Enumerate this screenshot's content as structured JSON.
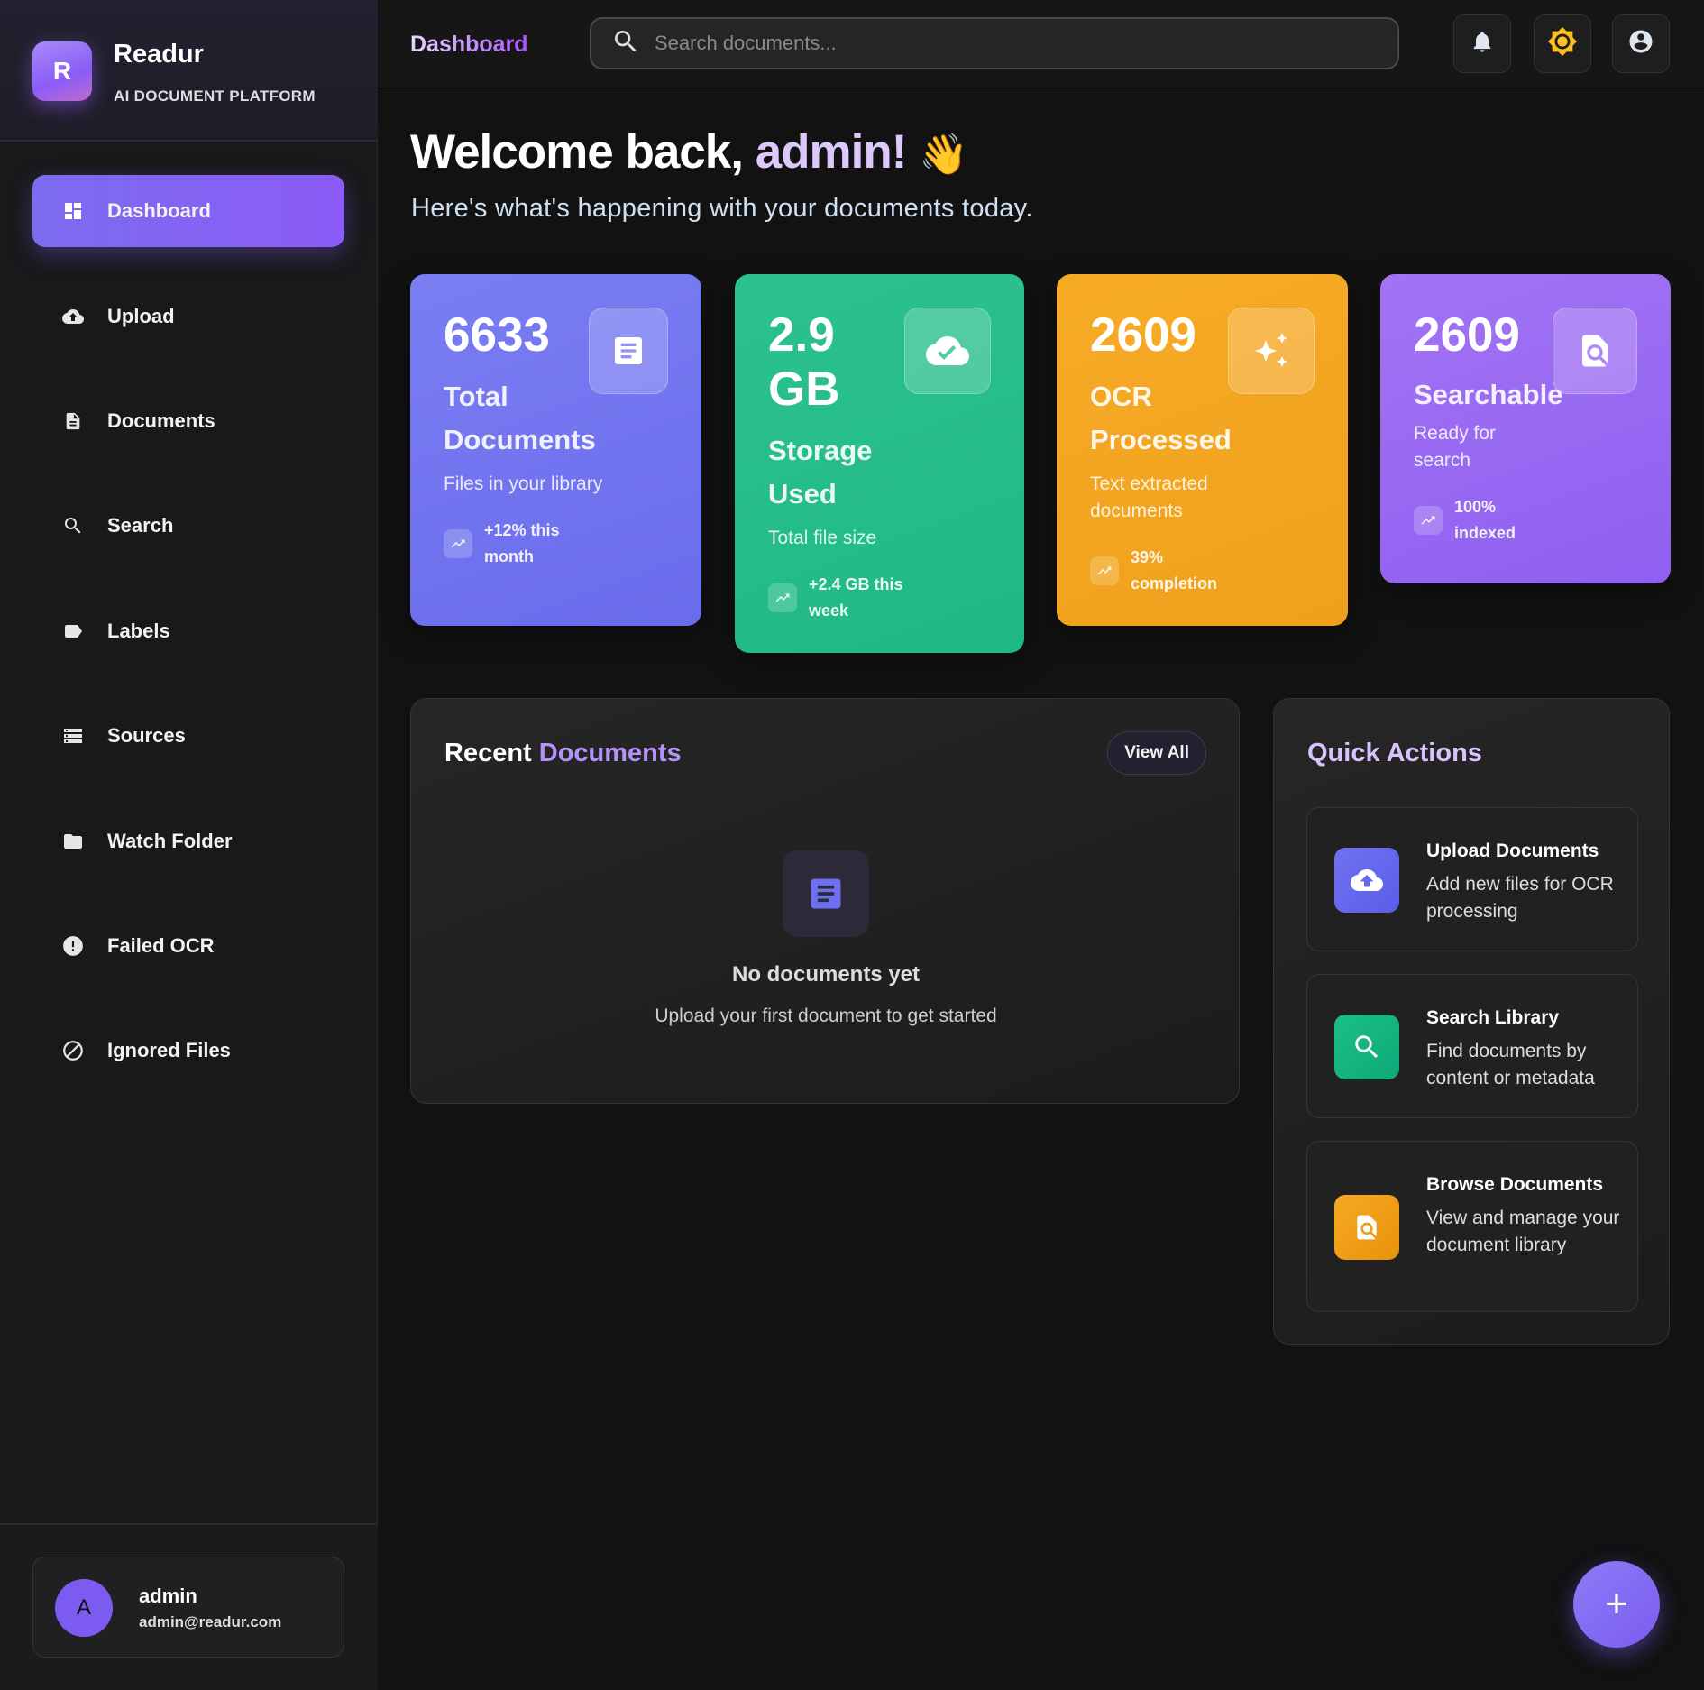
{
  "brand": {
    "logo_letter": "R",
    "name": "Readur",
    "tagline": "AI DOCUMENT PLATFORM"
  },
  "sidebar": {
    "items": [
      {
        "label": "Dashboard",
        "icon": "dashboard-icon",
        "active": true
      },
      {
        "label": "Upload",
        "icon": "cloud-upload-icon"
      },
      {
        "label": "Documents",
        "icon": "document-icon"
      },
      {
        "label": "Search",
        "icon": "search-icon"
      },
      {
        "label": "Labels",
        "icon": "label-icon"
      },
      {
        "label": "Sources",
        "icon": "storage-icon"
      },
      {
        "label": "Watch Folder",
        "icon": "folder-icon"
      },
      {
        "label": "Failed OCR",
        "icon": "error-icon"
      },
      {
        "label": "Ignored Files",
        "icon": "block-icon"
      }
    ]
  },
  "user": {
    "avatar_letter": "A",
    "name": "admin",
    "email": "admin@readur.com"
  },
  "header": {
    "title": "Dashboard",
    "search_placeholder": "Search documents..."
  },
  "welcome": {
    "title_start": "Welcome back, ",
    "title_name": "admin!",
    "emoji": "👋",
    "subtitle": "Here's what's happening with your documents today."
  },
  "stats": [
    {
      "value": "6633",
      "label": "Total Documents",
      "desc": "Files in your library",
      "trend": "+12% this month",
      "color": "#6d70f0",
      "icon": "document-icon"
    },
    {
      "value": "2.9 GB",
      "label": "Storage Used",
      "desc": "Total file size",
      "trend": "+2.4 GB this week",
      "color": "#22bb87",
      "icon": "cloud-done-icon"
    },
    {
      "value": "2609",
      "label": "OCR Processed",
      "desc": "Text extracted documents",
      "trend": "39% completion",
      "color": "#f3a41f",
      "icon": "sparkle-icon"
    },
    {
      "value": "2609",
      "label": "Searchable",
      "desc": "Ready for search",
      "trend": "100% indexed",
      "color": "#9466f2",
      "icon": "find-in-page-icon"
    }
  ],
  "recent": {
    "title_start": "Recent ",
    "title_accent": "Documents",
    "view_all": "View All",
    "empty_title": "No documents yet",
    "empty_sub": "Upload your first document to get started"
  },
  "quick_actions": {
    "title": "Quick Actions",
    "items": [
      {
        "title": "Upload Documents",
        "desc": "Add new files for OCR processing",
        "color": "#6366f1",
        "icon": "cloud-upload-icon"
      },
      {
        "title": "Search Library",
        "desc": "Find documents by content or metadata",
        "color": "#10b981",
        "icon": "search-icon"
      },
      {
        "title": "Browse Documents",
        "desc": "View and manage your document library",
        "color": "#f59e0b",
        "icon": "find-in-page-icon"
      }
    ]
  },
  "fab": {
    "label": "+"
  }
}
